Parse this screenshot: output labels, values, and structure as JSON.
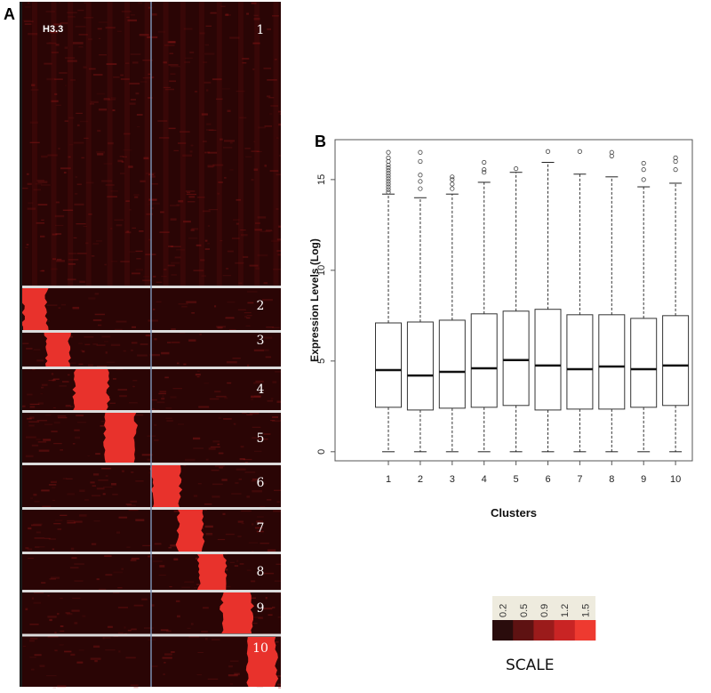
{
  "panel_a": {
    "letter": "A",
    "label": "H3.3",
    "clusters": [
      "1",
      "2",
      "3",
      "4",
      "5",
      "6",
      "7",
      "8",
      "9",
      "10"
    ]
  },
  "panel_b": {
    "letter": "B"
  },
  "chart_data": [
    {
      "type": "heatmap",
      "title": "H3.3",
      "row_clusters": [
        "1",
        "2",
        "3",
        "4",
        "5",
        "6",
        "7",
        "8",
        "9",
        "10"
      ],
      "column_groups": 2,
      "enriched_column_fraction": [
        null,
        0.0,
        0.09,
        0.2,
        0.32,
        0.5,
        0.6,
        0.68,
        0.77,
        0.87
      ],
      "colors": {
        "background": "#2a0505",
        "signal": "#e8322c",
        "separator": "#dcdcdc",
        "divider": "#7a8fb0"
      }
    },
    {
      "type": "box",
      "title": "",
      "xlabel": "Clusters",
      "ylabel": "Expression Levels (Log)",
      "categories": [
        "1",
        "2",
        "3",
        "4",
        "5",
        "6",
        "7",
        "8",
        "9",
        "10"
      ],
      "yticks": [
        "0",
        "5",
        "10",
        "15"
      ],
      "ylim": [
        -0.5,
        17.2
      ],
      "q1": [
        2.45,
        2.3,
        2.4,
        2.45,
        2.55,
        2.3,
        2.35,
        2.35,
        2.45,
        2.55
      ],
      "median": [
        4.5,
        4.2,
        4.4,
        4.6,
        5.05,
        4.75,
        4.55,
        4.7,
        4.55,
        4.75
      ],
      "q3": [
        7.1,
        7.15,
        7.25,
        7.6,
        7.75,
        7.85,
        7.55,
        7.55,
        7.35,
        7.5
      ],
      "whisker_low": [
        0,
        0,
        0,
        0,
        0,
        0,
        0,
        0,
        0,
        0
      ],
      "whisker_high": [
        14.2,
        14.0,
        14.2,
        14.85,
        15.4,
        15.95,
        15.3,
        15.15,
        14.6,
        14.8
      ],
      "outliers": [
        [
          14.3,
          14.45,
          14.6,
          14.75,
          14.9,
          15.05,
          15.2,
          15.35,
          15.5,
          15.65,
          15.8,
          16.0,
          16.2,
          16.5
        ],
        [
          14.5,
          14.9,
          15.25,
          16.0,
          16.5
        ],
        [
          14.5,
          14.75,
          15.0,
          15.15
        ],
        [
          15.4,
          15.55,
          15.95
        ],
        [
          15.6
        ],
        [
          16.55
        ],
        [
          16.55
        ],
        [
          16.3,
          16.5
        ],
        [
          15.0,
          15.55,
          15.9
        ],
        [
          15.55,
          16.0,
          16.2
        ]
      ]
    },
    {
      "type": "legend",
      "title": "SCALE",
      "labels": [
        "0.2",
        "0.5",
        "0.9",
        "1.2",
        "1.5"
      ],
      "colors": [
        "#2a0c0c",
        "#5e1212",
        "#9b1b1b",
        "#c92424",
        "#ee3a30"
      ]
    }
  ]
}
